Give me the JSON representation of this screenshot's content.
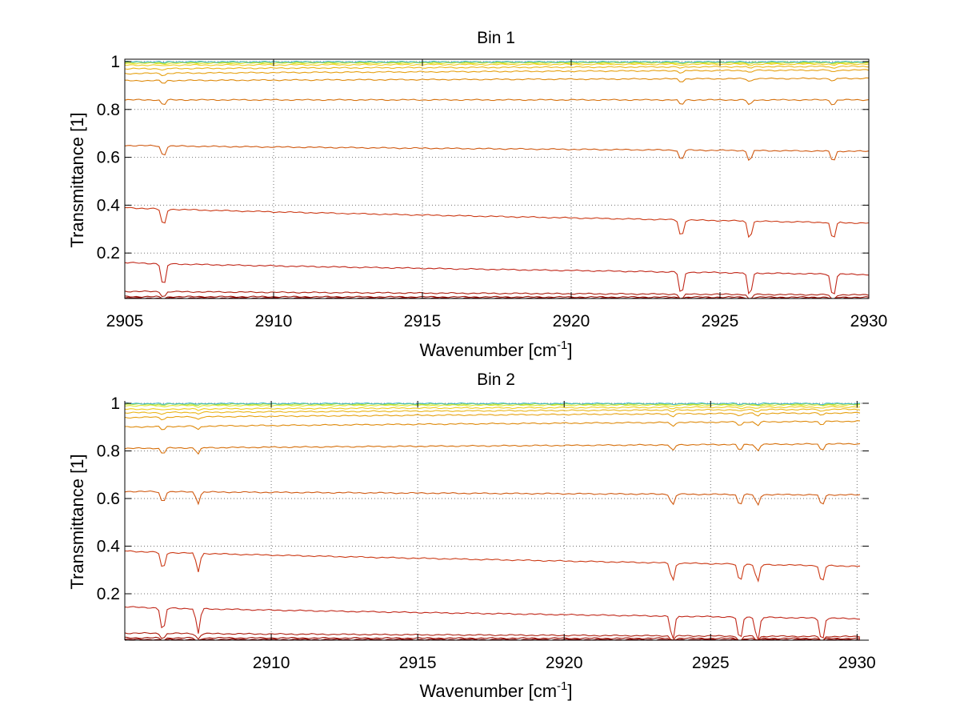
{
  "chart_data": [
    {
      "type": "line",
      "title": "Bin 1",
      "xlabel": "Wavenumber [cm",
      "xlabel_sup": "-1",
      "xlabel_suffix": "]",
      "ylabel": "Transmittance [1]",
      "xlim": [
        2905,
        2930
      ],
      "ylim": [
        0.01,
        1.01
      ],
      "xticks": [
        2905,
        2910,
        2915,
        2920,
        2925,
        2930
      ],
      "xtick_labels": [
        "2905",
        "2910",
        "2915",
        "2920",
        "2925",
        "2930"
      ],
      "yticks": [
        0.2,
        0.4,
        0.6,
        0.8,
        1
      ],
      "ytick_labels": [
        "0.2",
        "0.4",
        "0.6",
        "0.8",
        "1"
      ],
      "grid": true,
      "absorption_lines": [
        2906.3,
        2923.7,
        2926.0,
        2928.8
      ],
      "series": [
        {
          "color": "#8b0000",
          "start": 0.012,
          "end": 0.01
        },
        {
          "color": "#9c1208",
          "start": 0.018,
          "end": 0.015
        },
        {
          "color": "#ad1f10",
          "start": 0.04,
          "end": 0.025
        },
        {
          "color": "#c1281a",
          "start": 0.16,
          "end": 0.11
        },
        {
          "color": "#cc3b17",
          "start": 0.39,
          "end": 0.325
        },
        {
          "color": "#d05a12",
          "start": 0.65,
          "end": 0.625
        },
        {
          "color": "#d6700c",
          "start": 0.84,
          "end": 0.84
        },
        {
          "color": "#df8b0d",
          "start": 0.92,
          "end": 0.93
        },
        {
          "color": "#e6a112",
          "start": 0.95,
          "end": 0.965
        },
        {
          "color": "#ebb61a",
          "start": 0.97,
          "end": 0.98
        },
        {
          "color": "#f0cb20",
          "start": 0.985,
          "end": 0.99
        },
        {
          "color": "#dde62a",
          "start": 0.993,
          "end": 0.995
        },
        {
          "color": "#a8e040",
          "start": 0.997,
          "end": 0.998
        },
        {
          "color": "#3fb8c8",
          "start": 0.999,
          "end": 0.999
        }
      ]
    },
    {
      "type": "line",
      "title": "Bin 2",
      "xlabel": "Wavenumber [cm",
      "xlabel_sup": "-1",
      "xlabel_suffix": "]",
      "ylabel": "Transmittance [1]",
      "xlim": [
        2905,
        2930.4
      ],
      "ylim": [
        0.005,
        1.01
      ],
      "xticks": [
        2910,
        2915,
        2920,
        2925,
        2930
      ],
      "xtick_labels": [
        "2910",
        "2915",
        "2920",
        "2925",
        "2930"
      ],
      "yticks": [
        0.2,
        0.4,
        0.6,
        0.8,
        1
      ],
      "ytick_labels": [
        "0.2",
        "0.4",
        "0.6",
        "0.8",
        "1"
      ],
      "grid": true,
      "absorption_lines": [
        2906.3,
        2907.5,
        2923.7,
        2926.0,
        2926.6,
        2928.8
      ],
      "series": [
        {
          "color": "#8b0000",
          "start": 0.008,
          "end": 0.007
        },
        {
          "color": "#9c1208",
          "start": 0.015,
          "end": 0.012
        },
        {
          "color": "#ad1f10",
          "start": 0.035,
          "end": 0.02
        },
        {
          "color": "#c1281a",
          "start": 0.145,
          "end": 0.095
        },
        {
          "color": "#cc3b17",
          "start": 0.38,
          "end": 0.315
        },
        {
          "color": "#d05a12",
          "start": 0.63,
          "end": 0.615
        },
        {
          "color": "#d6700c",
          "start": 0.81,
          "end": 0.83
        },
        {
          "color": "#df8b0d",
          "start": 0.9,
          "end": 0.925
        },
        {
          "color": "#e6a112",
          "start": 0.94,
          "end": 0.96
        },
        {
          "color": "#ebb61a",
          "start": 0.96,
          "end": 0.975
        },
        {
          "color": "#f0cb20",
          "start": 0.975,
          "end": 0.985
        },
        {
          "color": "#dde62a",
          "start": 0.99,
          "end": 0.993
        },
        {
          "color": "#a8e040",
          "start": 0.996,
          "end": 0.997
        },
        {
          "color": "#3fb8c8",
          "start": 0.999,
          "end": 0.999
        }
      ]
    }
  ]
}
